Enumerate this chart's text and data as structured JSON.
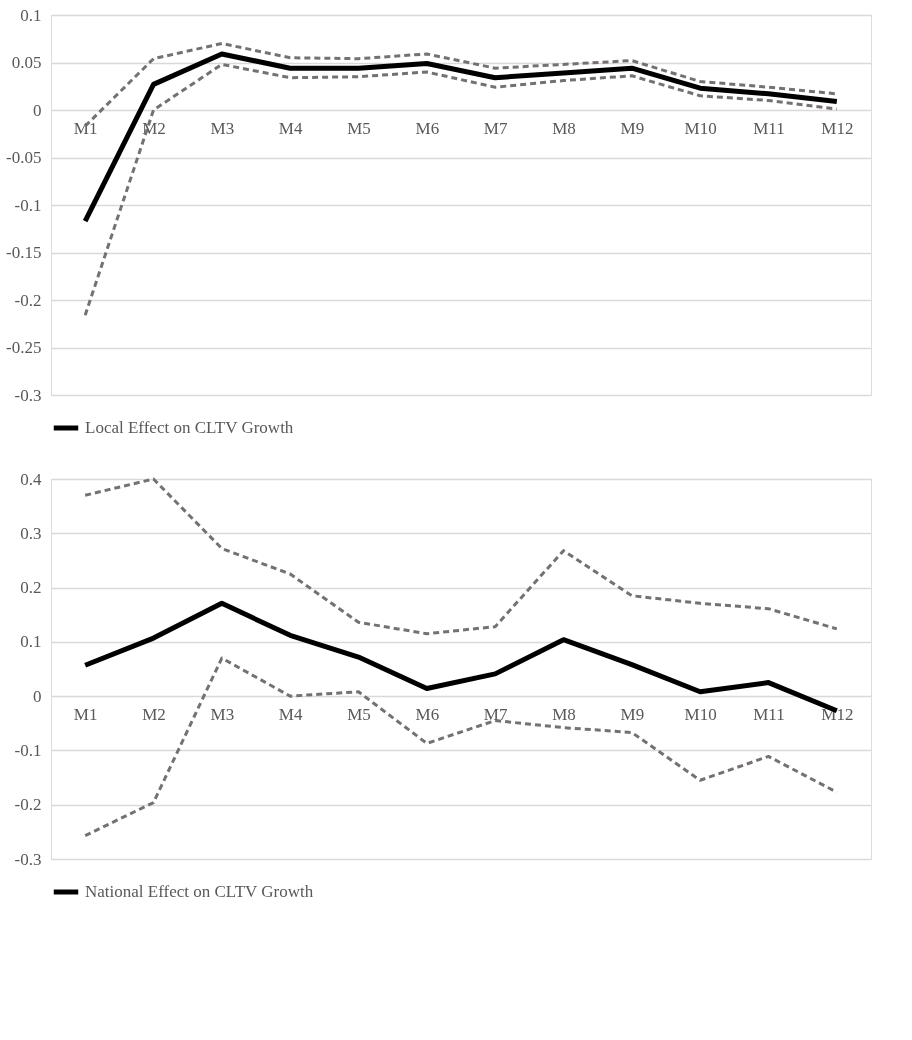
{
  "chart_data": [
    {
      "type": "line",
      "categories": [
        "M1",
        "M2",
        "M3",
        "M4",
        "M5",
        "M6",
        "M7",
        "M8",
        "M9",
        "M10",
        "M11",
        "M12"
      ],
      "ylim": [
        -0.3,
        0.1
      ],
      "yticks": [
        -0.3,
        -0.25,
        -0.2,
        -0.15,
        -0.1,
        -0.05,
        0,
        0.05,
        0.1
      ],
      "grid": "y",
      "legend": "bottom",
      "marker": "none",
      "series": [
        {
          "name": "Local Effect on CLTV Growth",
          "color": "#000000",
          "line_style": "solid",
          "values": [
            -0.117,
            0.027,
            0.059,
            0.044,
            0.044,
            0.049,
            0.034,
            0.039,
            0.044,
            0.023,
            0.017,
            0.009
          ]
        },
        {
          "color": "#767171",
          "line_style": "dashed",
          "values": [
            -0.017,
            0.054,
            0.07,
            0.055,
            0.054,
            0.059,
            0.044,
            0.048,
            0.052,
            0.03,
            0.024,
            0.017
          ]
        },
        {
          "color": "#767171",
          "line_style": "dashed",
          "values": [
            -0.216,
            0.0,
            0.048,
            0.034,
            0.035,
            0.04,
            0.024,
            0.031,
            0.036,
            0.015,
            0.01,
            0.001
          ]
        }
      ]
    },
    {
      "type": "line",
      "categories": [
        "M1",
        "M2",
        "M3",
        "M4",
        "M5",
        "M6",
        "M7",
        "M8",
        "M9",
        "M10",
        "M11",
        "M12"
      ],
      "ylim": [
        -0.3,
        0.4
      ],
      "yticks": [
        -0.3,
        -0.2,
        -0.1,
        0,
        0.1,
        0.2,
        0.3,
        0.4
      ],
      "grid": "y",
      "legend": "bottom",
      "marker": "none",
      "series": [
        {
          "name": "National Effect on CLTV Growth",
          "color": "#000000",
          "line_style": "solid",
          "values": [
            0.057,
            0.107,
            0.171,
            0.112,
            0.072,
            0.014,
            0.041,
            0.104,
            0.058,
            0.008,
            0.025,
            -0.027
          ]
        },
        {
          "color": "#767171",
          "line_style": "dashed",
          "values": [
            0.37,
            0.4,
            0.272,
            0.225,
            0.136,
            0.115,
            0.128,
            0.268,
            0.185,
            0.171,
            0.161,
            0.124
          ]
        },
        {
          "color": "#767171",
          "line_style": "dashed",
          "values": [
            -0.257,
            -0.196,
            0.07,
            0.0,
            0.008,
            -0.087,
            -0.045,
            -0.058,
            -0.067,
            -0.155,
            -0.111,
            -0.177
          ]
        }
      ]
    }
  ]
}
